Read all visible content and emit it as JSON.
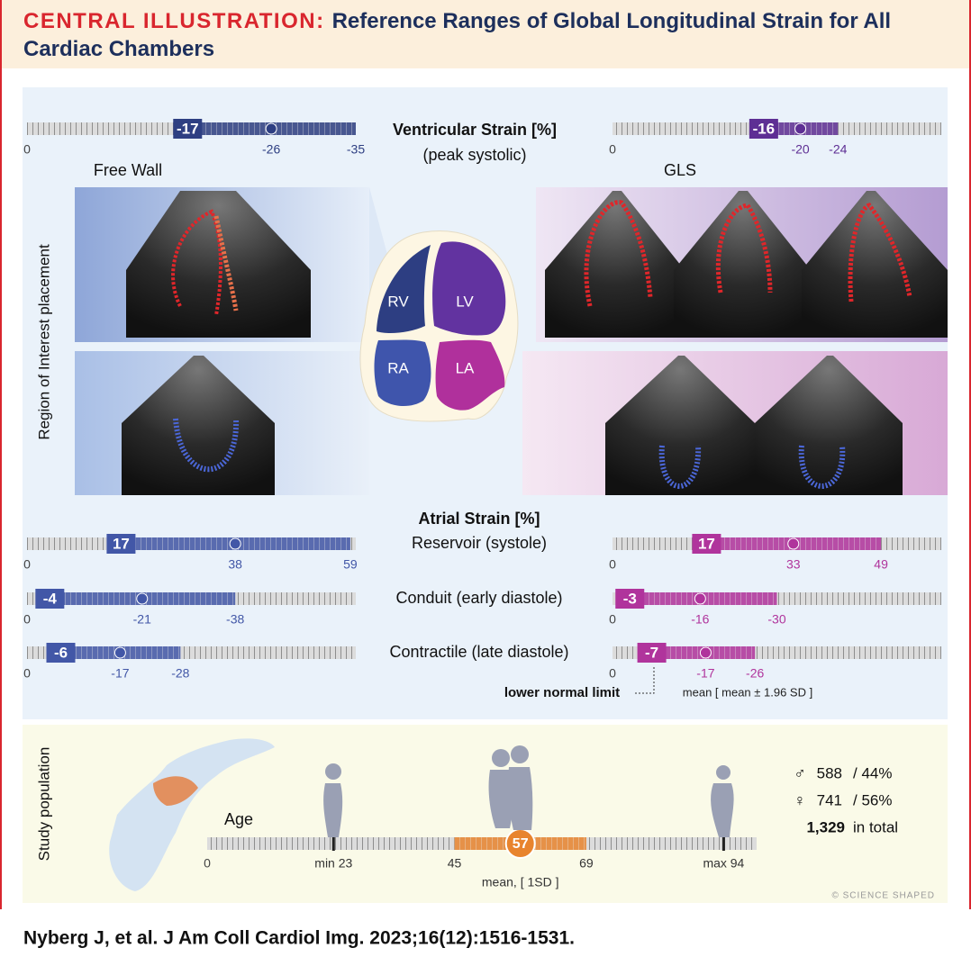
{
  "header": {
    "label": "CENTRAL ILLUSTRATION:",
    "title": "Reference Ranges of Global Longitudinal Strain for All Cardiac Chambers"
  },
  "side_labels": {
    "roi": "Region of Interest placement",
    "population": "Study population"
  },
  "chambers": [
    "RV",
    "LV",
    "RA",
    "LA"
  ],
  "ventricular": {
    "title": "Ventricular Strain [%]",
    "subtitle": "(peak systolic)",
    "xlim": [
      0,
      35
    ],
    "left": {
      "label": "Free Wall",
      "color": "#2e3f82",
      "lower": -17,
      "mean": -26,
      "upper": -35
    },
    "right": {
      "label": "GLS",
      "color": "#5e2f94",
      "lower": -16,
      "mean": -20,
      "upper": -24
    }
  },
  "atrial": {
    "title": "Atrial Strain [%]",
    "xlim": [
      0,
      60
    ],
    "rows": [
      {
        "label": "Reservoir (systole)",
        "left": {
          "color": "#4257a7",
          "lower": 17,
          "mean": 38,
          "upper": 59
        },
        "right": {
          "color": "#b0349c",
          "lower": 17,
          "mean": 33,
          "upper": 49
        }
      },
      {
        "label": "Conduit (early diastole)",
        "left": {
          "color": "#4257a7",
          "lower": -4,
          "mean": -21,
          "upper": -38
        },
        "right": {
          "color": "#b0349c",
          "lower": -3,
          "mean": -16,
          "upper": -30
        }
      },
      {
        "label": "Contractile (late diastole)",
        "left": {
          "color": "#4257a7",
          "lower": -6,
          "mean": -17,
          "upper": -28
        },
        "right": {
          "color": "#b0349c",
          "lower": -7,
          "mean": -17,
          "upper": -26
        }
      }
    ]
  },
  "legend": {
    "lower": "lower normal limit",
    "mean": "mean [ mean ± 1.96 SD ]"
  },
  "age": {
    "label": "Age",
    "xlim": [
      0,
      100
    ],
    "min": {
      "value": 23,
      "label": "min 23"
    },
    "max": {
      "value": 94,
      "label": "max 94"
    },
    "mean": 57,
    "sd_low": 45,
    "sd_high": 69,
    "mean_label": "mean, [ 1SD ]",
    "color": "#e8842e"
  },
  "population": {
    "male": {
      "symbol": "♂",
      "count": 588,
      "share": "/ 44%"
    },
    "female": {
      "symbol": "♀",
      "count": 741,
      "share": "/ 56%"
    },
    "total": {
      "value": 1329,
      "label": "1,329"
    },
    "total_text": "in total"
  },
  "copyright": "© SCIENCE SHAPED",
  "citation": "Nyberg J, et al. J Am Coll Cardiol Img. 2023;16(12):1516-1531."
}
